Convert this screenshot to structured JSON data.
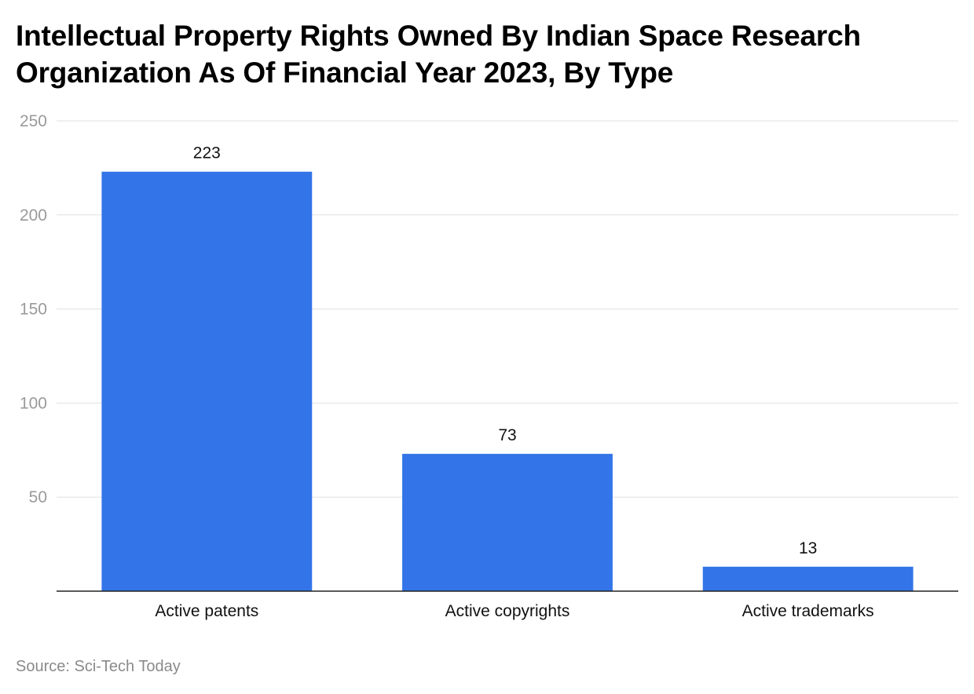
{
  "chart_data": {
    "type": "bar",
    "title": "Intellectual Property Rights Owned By Indian Space Research Organization As Of Financial Year 2023, By Type",
    "categories": [
      "Active patents",
      "Active copyrights",
      "Active trademarks"
    ],
    "values": [
      223,
      73,
      13
    ],
    "data_labels": [
      "223",
      "73",
      "13"
    ],
    "xlabel": "",
    "ylabel": "",
    "ylim": [
      0,
      250
    ],
    "yticks": [
      50,
      100,
      150,
      200,
      250
    ],
    "ytick_labels": [
      "50",
      "100",
      "150",
      "200",
      "250"
    ],
    "grid": true,
    "legend": "none",
    "bar_color": "#3375e8"
  },
  "source": "Source: Sci-Tech Today",
  "colors": {
    "gridline": "#e0e0e0",
    "axis": "#222222",
    "tick_label": "#9a9a9a",
    "data_label": "#111111",
    "category_label": "#111111"
  }
}
